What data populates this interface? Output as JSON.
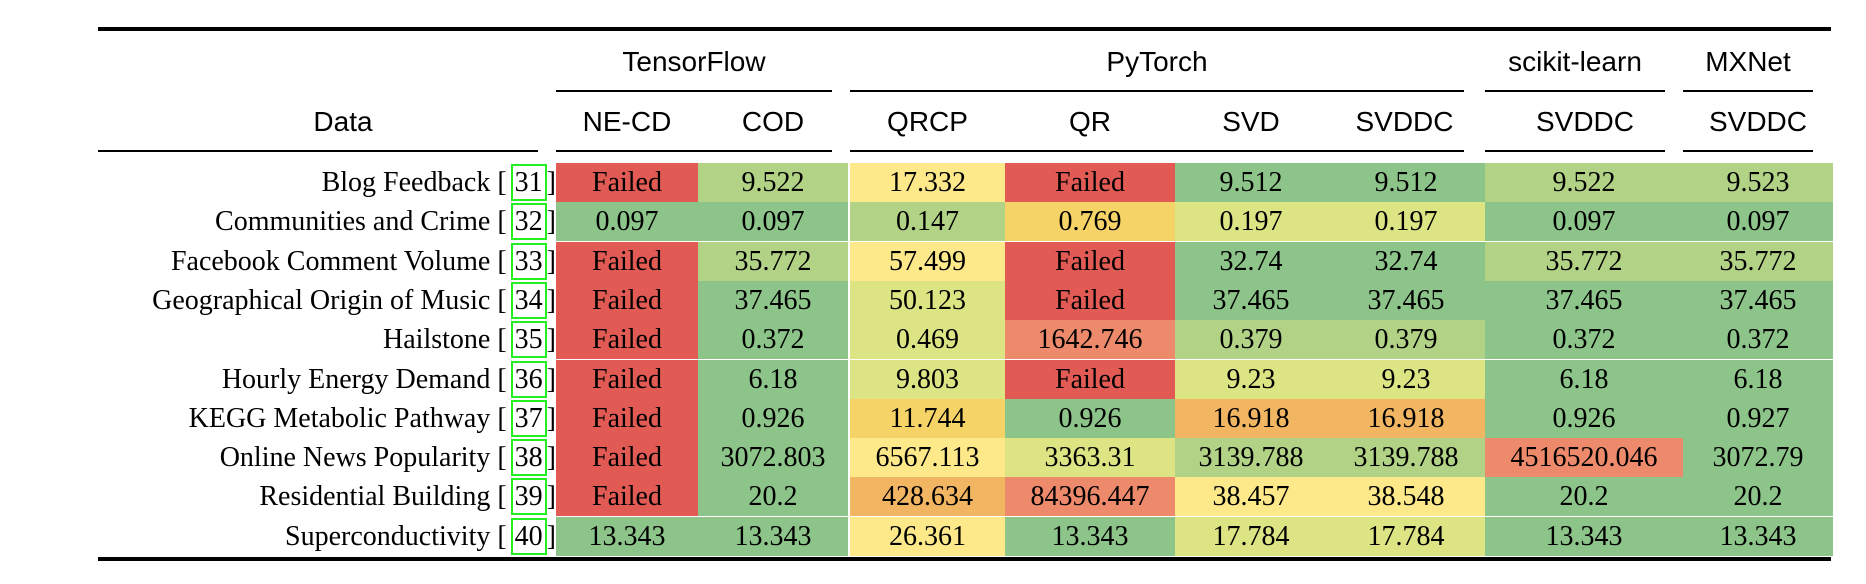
{
  "header": {
    "data_label": "Data",
    "groups": [
      "TensorFlow",
      "PyTorch",
      "scikit-learn",
      "MXNet"
    ],
    "columns": [
      "NE-CD",
      "COD",
      "QRCP",
      "QR",
      "SVD",
      "SVDDC",
      "SVDDC",
      "SVDDC"
    ]
  },
  "colors": {
    "red": "#e15a54",
    "salmon": "#ee8a6c",
    "orange": "#f2b562",
    "gold": "#f6d367",
    "yellow": "#fde98a",
    "yellowgreen": "#dde483",
    "lightgreen": "#b2d286",
    "green": "#8cc489"
  },
  "rows": [
    {
      "name": "Blog Feedback",
      "cite": "31",
      "cells": [
        {
          "v": "Failed",
          "c": "red"
        },
        {
          "v": "9.522",
          "c": "lightgreen"
        },
        {
          "v": "17.332",
          "c": "yellow"
        },
        {
          "v": "Failed",
          "c": "red"
        },
        {
          "v": "9.512",
          "c": "green"
        },
        {
          "v": "9.512",
          "c": "green"
        },
        {
          "v": "9.522",
          "c": "lightgreen"
        },
        {
          "v": "9.523",
          "c": "lightgreen"
        }
      ]
    },
    {
      "name": "Communities and Crime",
      "cite": "32",
      "cells": [
        {
          "v": "0.097",
          "c": "green"
        },
        {
          "v": "0.097",
          "c": "green"
        },
        {
          "v": "0.147",
          "c": "lightgreen"
        },
        {
          "v": "0.769",
          "c": "gold"
        },
        {
          "v": "0.197",
          "c": "yellowgreen"
        },
        {
          "v": "0.197",
          "c": "yellowgreen"
        },
        {
          "v": "0.097",
          "c": "green"
        },
        {
          "v": "0.097",
          "c": "green"
        }
      ]
    },
    {
      "name": "Facebook Comment Volume",
      "cite": "33",
      "cells": [
        {
          "v": "Failed",
          "c": "red"
        },
        {
          "v": "35.772",
          "c": "lightgreen"
        },
        {
          "v": "57.499",
          "c": "yellow"
        },
        {
          "v": "Failed",
          "c": "red"
        },
        {
          "v": "32.74",
          "c": "green"
        },
        {
          "v": "32.74",
          "c": "green"
        },
        {
          "v": "35.772",
          "c": "lightgreen"
        },
        {
          "v": "35.772",
          "c": "lightgreen"
        }
      ]
    },
    {
      "name": "Geographical Origin of Music",
      "cite": "34",
      "cells": [
        {
          "v": "Failed",
          "c": "red"
        },
        {
          "v": "37.465",
          "c": "green"
        },
        {
          "v": "50.123",
          "c": "yellowgreen"
        },
        {
          "v": "Failed",
          "c": "red"
        },
        {
          "v": "37.465",
          "c": "green"
        },
        {
          "v": "37.465",
          "c": "green"
        },
        {
          "v": "37.465",
          "c": "green"
        },
        {
          "v": "37.465",
          "c": "green"
        }
      ]
    },
    {
      "name": "Hailstone",
      "cite": "35",
      "cells": [
        {
          "v": "Failed",
          "c": "red"
        },
        {
          "v": "0.372",
          "c": "green"
        },
        {
          "v": "0.469",
          "c": "yellowgreen"
        },
        {
          "v": "1642.746",
          "c": "salmon"
        },
        {
          "v": "0.379",
          "c": "lightgreen"
        },
        {
          "v": "0.379",
          "c": "lightgreen"
        },
        {
          "v": "0.372",
          "c": "green"
        },
        {
          "v": "0.372",
          "c": "green"
        }
      ]
    },
    {
      "name": "Hourly Energy Demand",
      "cite": "36",
      "cells": [
        {
          "v": "Failed",
          "c": "red"
        },
        {
          "v": "6.18",
          "c": "green"
        },
        {
          "v": "9.803",
          "c": "yellowgreen"
        },
        {
          "v": "Failed",
          "c": "red"
        },
        {
          "v": "9.23",
          "c": "yellowgreen"
        },
        {
          "v": "9.23",
          "c": "yellowgreen"
        },
        {
          "v": "6.18",
          "c": "green"
        },
        {
          "v": "6.18",
          "c": "green"
        }
      ]
    },
    {
      "name": "KEGG Metabolic Pathway",
      "cite": "37",
      "cells": [
        {
          "v": "Failed",
          "c": "red"
        },
        {
          "v": "0.926",
          "c": "green"
        },
        {
          "v": "11.744",
          "c": "gold"
        },
        {
          "v": "0.926",
          "c": "green"
        },
        {
          "v": "16.918",
          "c": "orange"
        },
        {
          "v": "16.918",
          "c": "orange"
        },
        {
          "v": "0.926",
          "c": "green"
        },
        {
          "v": "0.927",
          "c": "green"
        }
      ]
    },
    {
      "name": "Online News Popularity",
      "cite": "38",
      "cells": [
        {
          "v": "Failed",
          "c": "red"
        },
        {
          "v": "3072.803",
          "c": "green"
        },
        {
          "v": "6567.113",
          "c": "yellow"
        },
        {
          "v": "3363.31",
          "c": "yellowgreen"
        },
        {
          "v": "3139.788",
          "c": "lightgreen"
        },
        {
          "v": "3139.788",
          "c": "lightgreen"
        },
        {
          "v": "4516520.046",
          "c": "salmon"
        },
        {
          "v": "3072.79",
          "c": "green"
        }
      ]
    },
    {
      "name": "Residential Building",
      "cite": "39",
      "cells": [
        {
          "v": "Failed",
          "c": "red"
        },
        {
          "v": "20.2",
          "c": "green"
        },
        {
          "v": "428.634",
          "c": "orange"
        },
        {
          "v": "84396.447",
          "c": "salmon"
        },
        {
          "v": "38.457",
          "c": "yellow"
        },
        {
          "v": "38.548",
          "c": "yellow"
        },
        {
          "v": "20.2",
          "c": "green"
        },
        {
          "v": "20.2",
          "c": "green"
        }
      ]
    },
    {
      "name": "Superconductivity",
      "cite": "40",
      "cells": [
        {
          "v": "13.343",
          "c": "green"
        },
        {
          "v": "13.343",
          "c": "green"
        },
        {
          "v": "26.361",
          "c": "yellow"
        },
        {
          "v": "13.343",
          "c": "green"
        },
        {
          "v": "17.784",
          "c": "yellowgreen"
        },
        {
          "v": "17.784",
          "c": "yellowgreen"
        },
        {
          "v": "13.343",
          "c": "green"
        },
        {
          "v": "13.343",
          "c": "green"
        }
      ]
    }
  ]
}
